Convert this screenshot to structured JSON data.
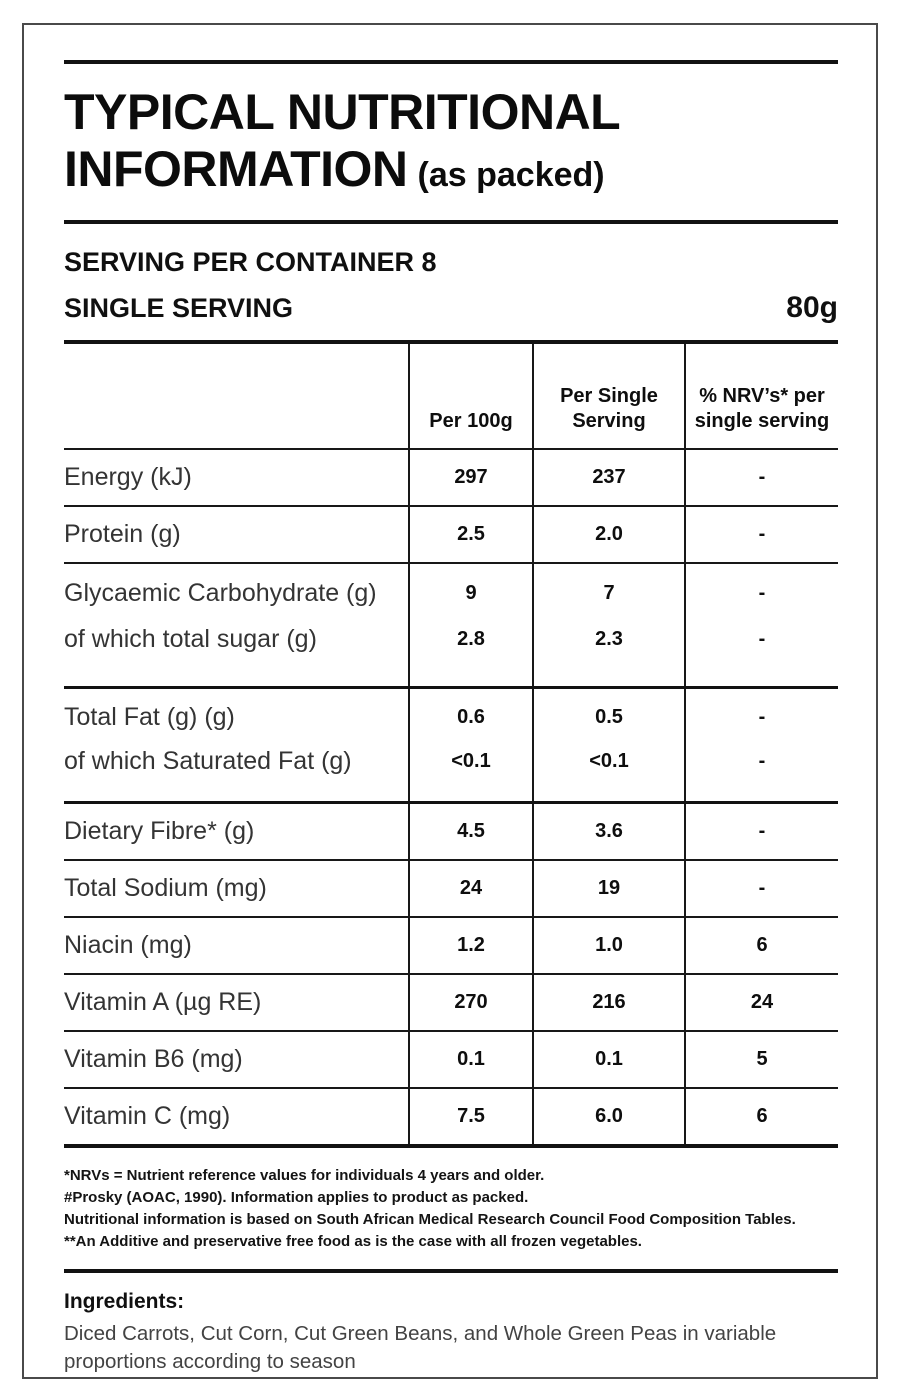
{
  "header": {
    "title_line1": "TYPICAL NUTRITIONAL",
    "title_line2": "INFORMATION",
    "title_suffix": "(as packed)",
    "serving_per_container": "SERVING PER CONTAINER 8",
    "single_serving_label": "SINGLE SERVING",
    "single_serving_weight": "80g"
  },
  "table": {
    "columns": {
      "nutrient": "",
      "per_100g": "Per 100g",
      "per_serving": "Per Single Serving",
      "nrv": "% NRV’s* per single serving"
    },
    "rows": [
      {
        "name": "Energy (kJ)",
        "per_100g": "297",
        "per_serving": "237",
        "nrv": "-"
      },
      {
        "name": "Protein (g)",
        "per_100g": "2.5",
        "per_serving": "2.0",
        "nrv": "-"
      },
      {
        "group": [
          {
            "name": "Glycaemic Carbohydrate (g)",
            "per_100g": "9",
            "per_serving": "7",
            "nrv": "-"
          },
          {
            "name": "of which total sugar (g)",
            "per_100g": "2.8",
            "per_serving": "2.3",
            "nrv": "-"
          }
        ]
      },
      {
        "group": [
          {
            "name": "Total Fat (g) (g)",
            "per_100g": "0.6",
            "per_serving": "0.5",
            "nrv": "-"
          },
          {
            "name": "of which Saturated Fat (g)",
            "per_100g": "<0.1",
            "per_serving": "<0.1",
            "nrv": "-"
          }
        ]
      },
      {
        "name": "Dietary Fibre* (g)",
        "per_100g": "4.5",
        "per_serving": "3.6",
        "nrv": "-"
      },
      {
        "name": "Total Sodium (mg)",
        "per_100g": "24",
        "per_serving": "19",
        "nrv": "-"
      },
      {
        "name": "Niacin (mg)",
        "per_100g": "1.2",
        "per_serving": "1.0",
        "nrv": "6"
      },
      {
        "name": "Vitamin A (µg RE)",
        "per_100g": "270",
        "per_serving": "216",
        "nrv": "24"
      },
      {
        "name": "Vitamin B6 (mg)",
        "per_100g": "0.1",
        "per_serving": "0.1",
        "nrv": "5"
      },
      {
        "name": "Vitamin C (mg)",
        "per_100g": "7.5",
        "per_serving": "6.0",
        "nrv": "6"
      }
    ]
  },
  "footnotes": {
    "line1": "*NRVs = Nutrient reference values for individuals 4 years and older.",
    "line2": "#Prosky (AOAC, 1990). Information applies to product as packed.",
    "line3": "Nutritional information is based on South African Medical Research Council Food Composition Tables.",
    "line4": "**An Additive and preservative free food as is the case with all frozen vegetables."
  },
  "ingredients": {
    "heading": "Ingredients:",
    "text": "Diced Carrots, Cut Corn, Cut Green Beans, and Whole Green Peas in variable proportions according to season"
  }
}
